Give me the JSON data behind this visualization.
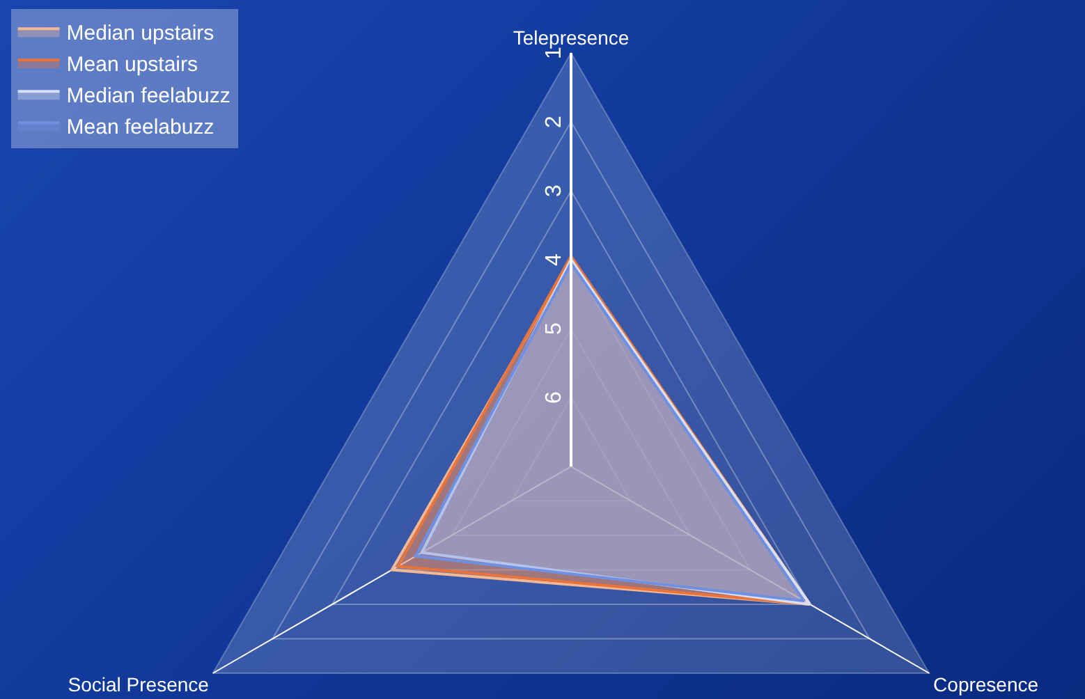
{
  "chart_data": {
    "type": "radar",
    "categories": [
      "Telepresence",
      "Copresence",
      "Social Presence"
    ],
    "ylim": [
      7,
      1
    ],
    "yticks": [
      1,
      2,
      3,
      4,
      5,
      6
    ],
    "grid": true,
    "legend": "top left",
    "series": [
      {
        "name": "Median upstairs",
        "color": "#f2b896",
        "values": [
          4,
          3,
          4
        ]
      },
      {
        "name": "Mean upstairs",
        "color": "#e8743c",
        "values": [
          3.95,
          3.0,
          4.1
        ]
      },
      {
        "name": "Median feelabuzz",
        "color": "#d8dff2",
        "values": [
          4,
          3,
          4.5
        ]
      },
      {
        "name": "Mean feelabuzz",
        "color": "#6f8fe0",
        "values": [
          4.05,
          3.1,
          4.4
        ]
      }
    ]
  }
}
